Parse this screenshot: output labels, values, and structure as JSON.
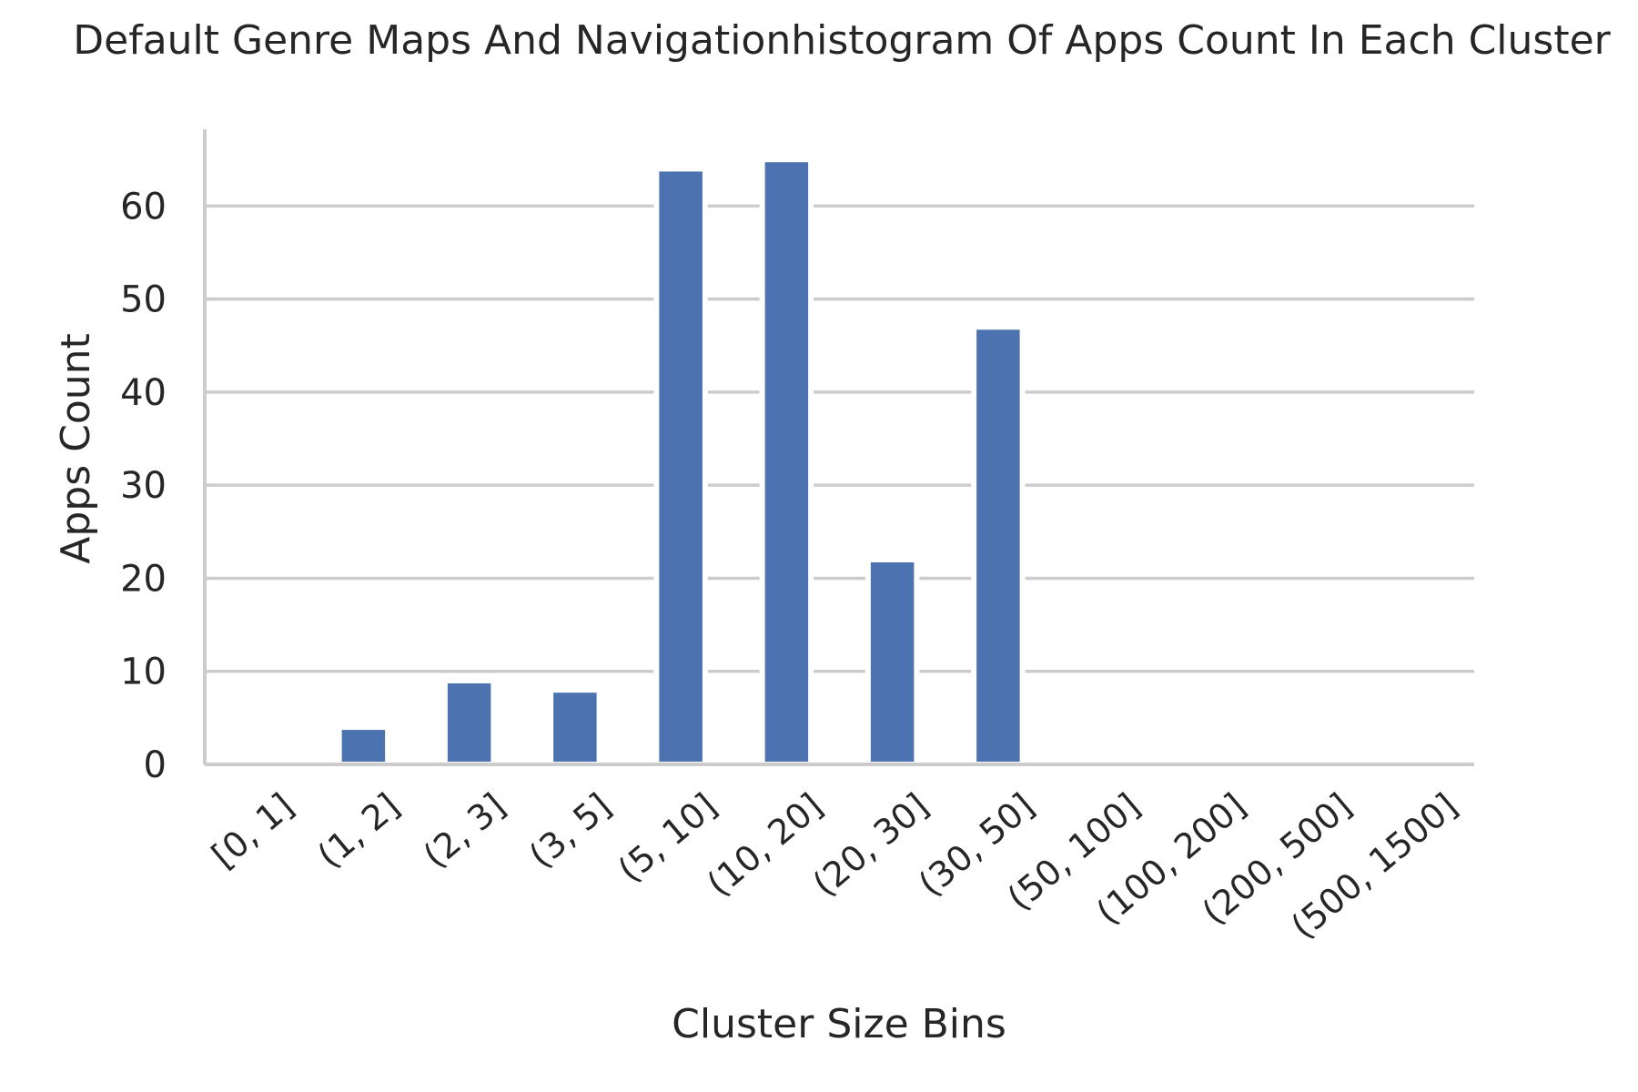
{
  "chart_data": {
    "type": "bar",
    "title": "Default Genre Maps And Navigationhistogram Of Apps Count In Each Cluster",
    "xlabel": "Cluster Size Bins",
    "ylabel": "Apps Count",
    "categories": [
      "[0, 1]",
      "(1, 2]",
      "(2, 3]",
      "(3, 5]",
      "(5, 10]",
      "(10, 20]",
      "(20, 30]",
      "(30, 50]",
      "(50, 100]",
      "(100, 200]",
      "(200, 500]",
      "(500, 1500]"
    ],
    "values": [
      0,
      4,
      9,
      8,
      64,
      65,
      22,
      47,
      0,
      0,
      0,
      0
    ],
    "ylim": [
      0,
      68.25
    ],
    "yticks": [
      0,
      10,
      20,
      30,
      40,
      50,
      60
    ],
    "grid": "horizontal",
    "legend": "none",
    "bar_color": "#4c72b0",
    "grid_color": "#cccccc",
    "axis_color": "#cccccc",
    "text_color": "#262626"
  }
}
